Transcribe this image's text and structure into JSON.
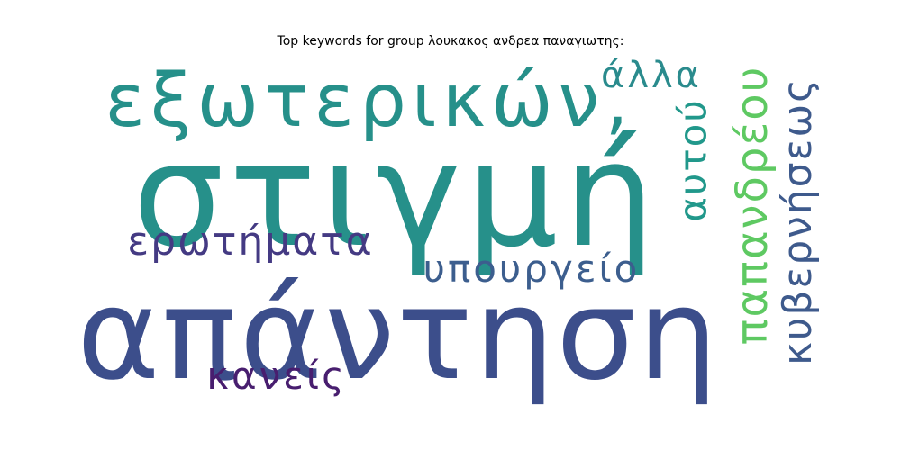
{
  "chart_data": {
    "type": "wordcloud",
    "title": "Top keywords for group λουκακος ανδρεα παναγιωτης:",
    "words": [
      {
        "text": "στιγμή",
        "weight": 1.0,
        "color": "#26908a"
      },
      {
        "text": "απάντηση",
        "weight": 0.98,
        "color": "#3c4e8b"
      },
      {
        "text": "εξωτερικών,",
        "weight": 0.62,
        "color": "#26908a"
      },
      {
        "text": "ερωτήματα",
        "weight": 0.38,
        "color": "#443a83"
      },
      {
        "text": "υπουργείο",
        "weight": 0.36,
        "color": "#3c5e8e"
      },
      {
        "text": "κανείς",
        "weight": 0.36,
        "color": "#481e6f"
      },
      {
        "text": "παπανδρέου",
        "weight": 0.42,
        "color": "#5ec962"
      },
      {
        "text": "κυβερνήσεως",
        "weight": 0.4,
        "color": "#3e5a8c"
      },
      {
        "text": "αυτού",
        "weight": 0.36,
        "color": "#21988b"
      },
      {
        "text": "άλλα",
        "weight": 0.34,
        "color": "#2a8b8d"
      }
    ]
  }
}
